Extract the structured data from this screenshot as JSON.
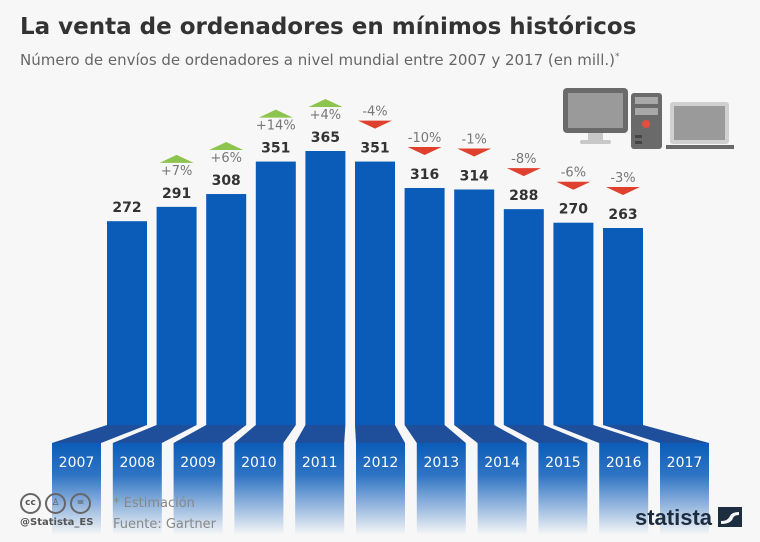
{
  "header": {
    "title": "La venta de ordenadores en mínimos históricos",
    "subtitle": "Número de envíos de ordenadores a nivel mundial entre 2007 y 2017 (en mill.)",
    "subtitle_mark": "*"
  },
  "chart_data": {
    "type": "bar",
    "categories": [
      "2007",
      "2008",
      "2009",
      "2010",
      "2011",
      "2012",
      "2013",
      "2014",
      "2015",
      "2016",
      "2017"
    ],
    "values": [
      272,
      291,
      308,
      351,
      365,
      351,
      316,
      314,
      288,
      270,
      263
    ],
    "changes": [
      "",
      "+7%",
      "+6%",
      "+14%",
      "+4%",
      "-4%",
      "-10%",
      "-1%",
      "-8%",
      "-6%",
      "-3%"
    ],
    "ylim": [
      0,
      365
    ],
    "grid": false,
    "colors": {
      "bar": "#0b5cb8",
      "fold": "#1f4e9a",
      "up": "#8dc44e",
      "down": "#e0402e",
      "change_text": "#777777",
      "value_text": "#333333"
    }
  },
  "footer": {
    "note": "* Estimación",
    "source": "Fuente: Gartner",
    "handle": "@Statista_ES",
    "brand": "statista",
    "license_icons": [
      "cc-icon",
      "by-icon",
      "nd-icon"
    ],
    "cc": "cc",
    "nd": "="
  },
  "illustration": [
    "desktop-monitor-icon",
    "pc-tower-icon",
    "laptop-icon"
  ]
}
